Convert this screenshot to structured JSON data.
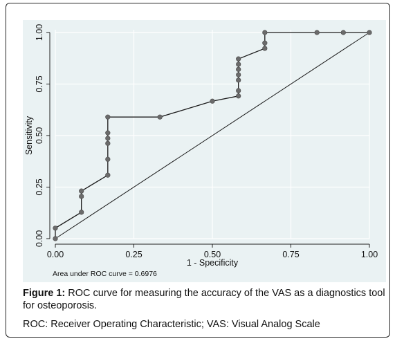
{
  "chart_data": {
    "type": "line",
    "xlabel": "1 - Specificity",
    "ylabel": "Sensitivity",
    "xlim": [
      0,
      1
    ],
    "ylim": [
      0,
      1
    ],
    "xticks": [
      "0.00",
      "0.25",
      "0.50",
      "0.75",
      "1.00"
    ],
    "yticks": [
      "0.00",
      "0.25",
      "0.50",
      "0.75",
      "1.00"
    ],
    "tick_values": [
      0,
      0.25,
      0.5,
      0.75,
      1
    ],
    "grid": true,
    "reference_line": true,
    "annotation": "Area under ROC curve = 0.6976",
    "series": [
      {
        "x": [
          0,
          0,
          0.083,
          0.083,
          0.083,
          0.167,
          0.167,
          0.167,
          0.167,
          0.167,
          0.167,
          0.333,
          0.5,
          0.583,
          0.583,
          0.583,
          0.583,
          0.583,
          0.583,
          0.583,
          0.667,
          0.667,
          0.667,
          0.833,
          0.917,
          1.0
        ],
        "y": [
          0,
          0.051,
          0.128,
          0.205,
          0.231,
          0.308,
          0.385,
          0.462,
          0.487,
          0.513,
          0.59,
          0.59,
          0.667,
          0.692,
          0.718,
          0.769,
          0.795,
          0.821,
          0.846,
          0.872,
          0.923,
          0.949,
          1.0,
          1.0,
          1.0,
          1.0
        ]
      }
    ]
  },
  "caption": {
    "figure_label": "Figure 1:",
    "figure_text": " ROC curve for measuring the accuracy of the VAS as a diagnostics tool for osteoporosis.",
    "abbreviations": "ROC: Receiver Operating Characteristic; VAS: Visual Analog Scale"
  },
  "colors": {
    "panel_background": "#eaf2f3",
    "grid": "#ffffff",
    "curve": "#1a1a1a",
    "marker": "#6b6b6b"
  }
}
